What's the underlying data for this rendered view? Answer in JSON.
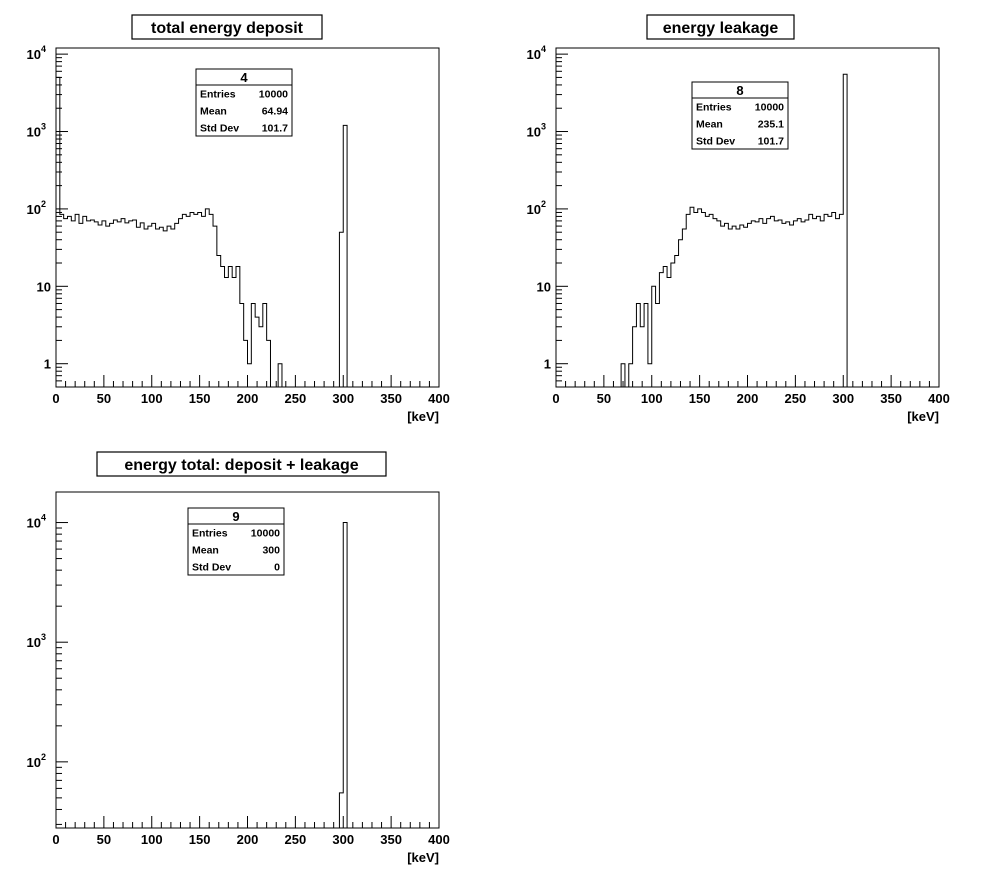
{
  "chart_data": [
    {
      "type": "bar",
      "title": "total energy deposit",
      "xlabel": "[keV]",
      "ylabel": "",
      "xlim": [
        0,
        400
      ],
      "ylim": [
        0.5,
        12000
      ],
      "log_y": true,
      "grid": false,
      "x_ticks": [
        "0",
        "50",
        "100",
        "150",
        "200",
        "250",
        "300",
        "350",
        "400"
      ],
      "y_ticks": [
        "1",
        "10",
        "10^2",
        "10^3",
        "10^4"
      ],
      "stats": {
        "name": "4",
        "rows": [
          {
            "label": "Entries",
            "value": "10000"
          },
          {
            "label": "Mean",
            "value": "64.94"
          },
          {
            "label": "Std Dev",
            "value": "101.7"
          }
        ]
      },
      "bin_width": 4,
      "bin_starts": [
        0,
        4,
        8,
        12,
        16,
        20,
        24,
        28,
        32,
        36,
        40,
        44,
        48,
        52,
        56,
        60,
        64,
        68,
        72,
        76,
        80,
        84,
        88,
        92,
        96,
        100,
        104,
        108,
        112,
        116,
        120,
        124,
        128,
        132,
        136,
        140,
        144,
        148,
        152,
        156,
        160,
        164,
        168,
        172,
        176,
        180,
        184,
        188,
        192,
        196,
        200,
        204,
        208,
        212,
        216,
        220,
        224,
        228,
        232,
        296,
        300
      ],
      "values": [
        5000,
        85,
        75,
        80,
        70,
        85,
        65,
        80,
        70,
        72,
        68,
        62,
        70,
        60,
        65,
        72,
        68,
        75,
        66,
        70,
        72,
        58,
        66,
        55,
        60,
        65,
        55,
        58,
        52,
        60,
        55,
        65,
        75,
        85,
        80,
        90,
        85,
        90,
        80,
        100,
        85,
        60,
        25,
        18,
        13,
        18,
        13,
        18,
        6,
        2,
        1,
        6,
        4,
        3,
        6,
        2,
        0.5,
        0.5,
        1,
        50,
        1200
      ]
    },
    {
      "type": "bar",
      "title": "energy leakage",
      "xlabel": "[keV]",
      "ylabel": "",
      "xlim": [
        0,
        400
      ],
      "ylim": [
        0.5,
        12000
      ],
      "log_y": true,
      "grid": false,
      "x_ticks": [
        "0",
        "50",
        "100",
        "150",
        "200",
        "250",
        "300",
        "350",
        "400"
      ],
      "y_ticks": [
        "1",
        "10",
        "10^2",
        "10^3",
        "10^4"
      ],
      "stats": {
        "name": "8",
        "rows": [
          {
            "label": "Entries",
            "value": "10000"
          },
          {
            "label": "Mean",
            "value": "235.1"
          },
          {
            "label": "Std Dev",
            "value": "101.7"
          }
        ]
      },
      "bin_width": 4,
      "bin_starts": [
        68,
        72,
        76,
        80,
        84,
        88,
        92,
        96,
        100,
        104,
        108,
        112,
        116,
        120,
        124,
        128,
        132,
        136,
        140,
        144,
        148,
        152,
        156,
        160,
        164,
        168,
        172,
        176,
        180,
        184,
        188,
        192,
        196,
        200,
        204,
        208,
        212,
        216,
        220,
        224,
        228,
        232,
        236,
        240,
        244,
        248,
        252,
        256,
        260,
        264,
        268,
        272,
        276,
        280,
        284,
        288,
        292,
        296,
        300
      ],
      "values": [
        1,
        0.5,
        1,
        3,
        6,
        3,
        6,
        1,
        10,
        6,
        15,
        18,
        13,
        20,
        25,
        40,
        55,
        85,
        105,
        90,
        100,
        90,
        80,
        85,
        75,
        70,
        60,
        65,
        55,
        60,
        55,
        62,
        58,
        65,
        70,
        68,
        75,
        65,
        75,
        80,
        70,
        72,
        65,
        68,
        62,
        70,
        75,
        68,
        72,
        85,
        75,
        80,
        70,
        85,
        80,
        90,
        75,
        85,
        5500
      ]
    },
    {
      "type": "bar",
      "title": "energy total: deposit + leakage",
      "xlabel": "[keV]",
      "ylabel": "",
      "xlim": [
        0,
        400
      ],
      "ylim": [
        28,
        18000
      ],
      "log_y": true,
      "grid": false,
      "x_ticks": [
        "0",
        "50",
        "100",
        "150",
        "200",
        "250",
        "300",
        "350",
        "400"
      ],
      "y_ticks": [
        "10^2",
        "10^3",
        "10^4"
      ],
      "stats": {
        "name": "9",
        "rows": [
          {
            "label": "Entries",
            "value": "10000"
          },
          {
            "label": "Mean",
            "value": "300"
          },
          {
            "label": "Std Dev",
            "value": "0"
          }
        ]
      },
      "bin_width": 4,
      "bin_starts": [
        296,
        300
      ],
      "values": [
        55,
        10000
      ]
    }
  ]
}
